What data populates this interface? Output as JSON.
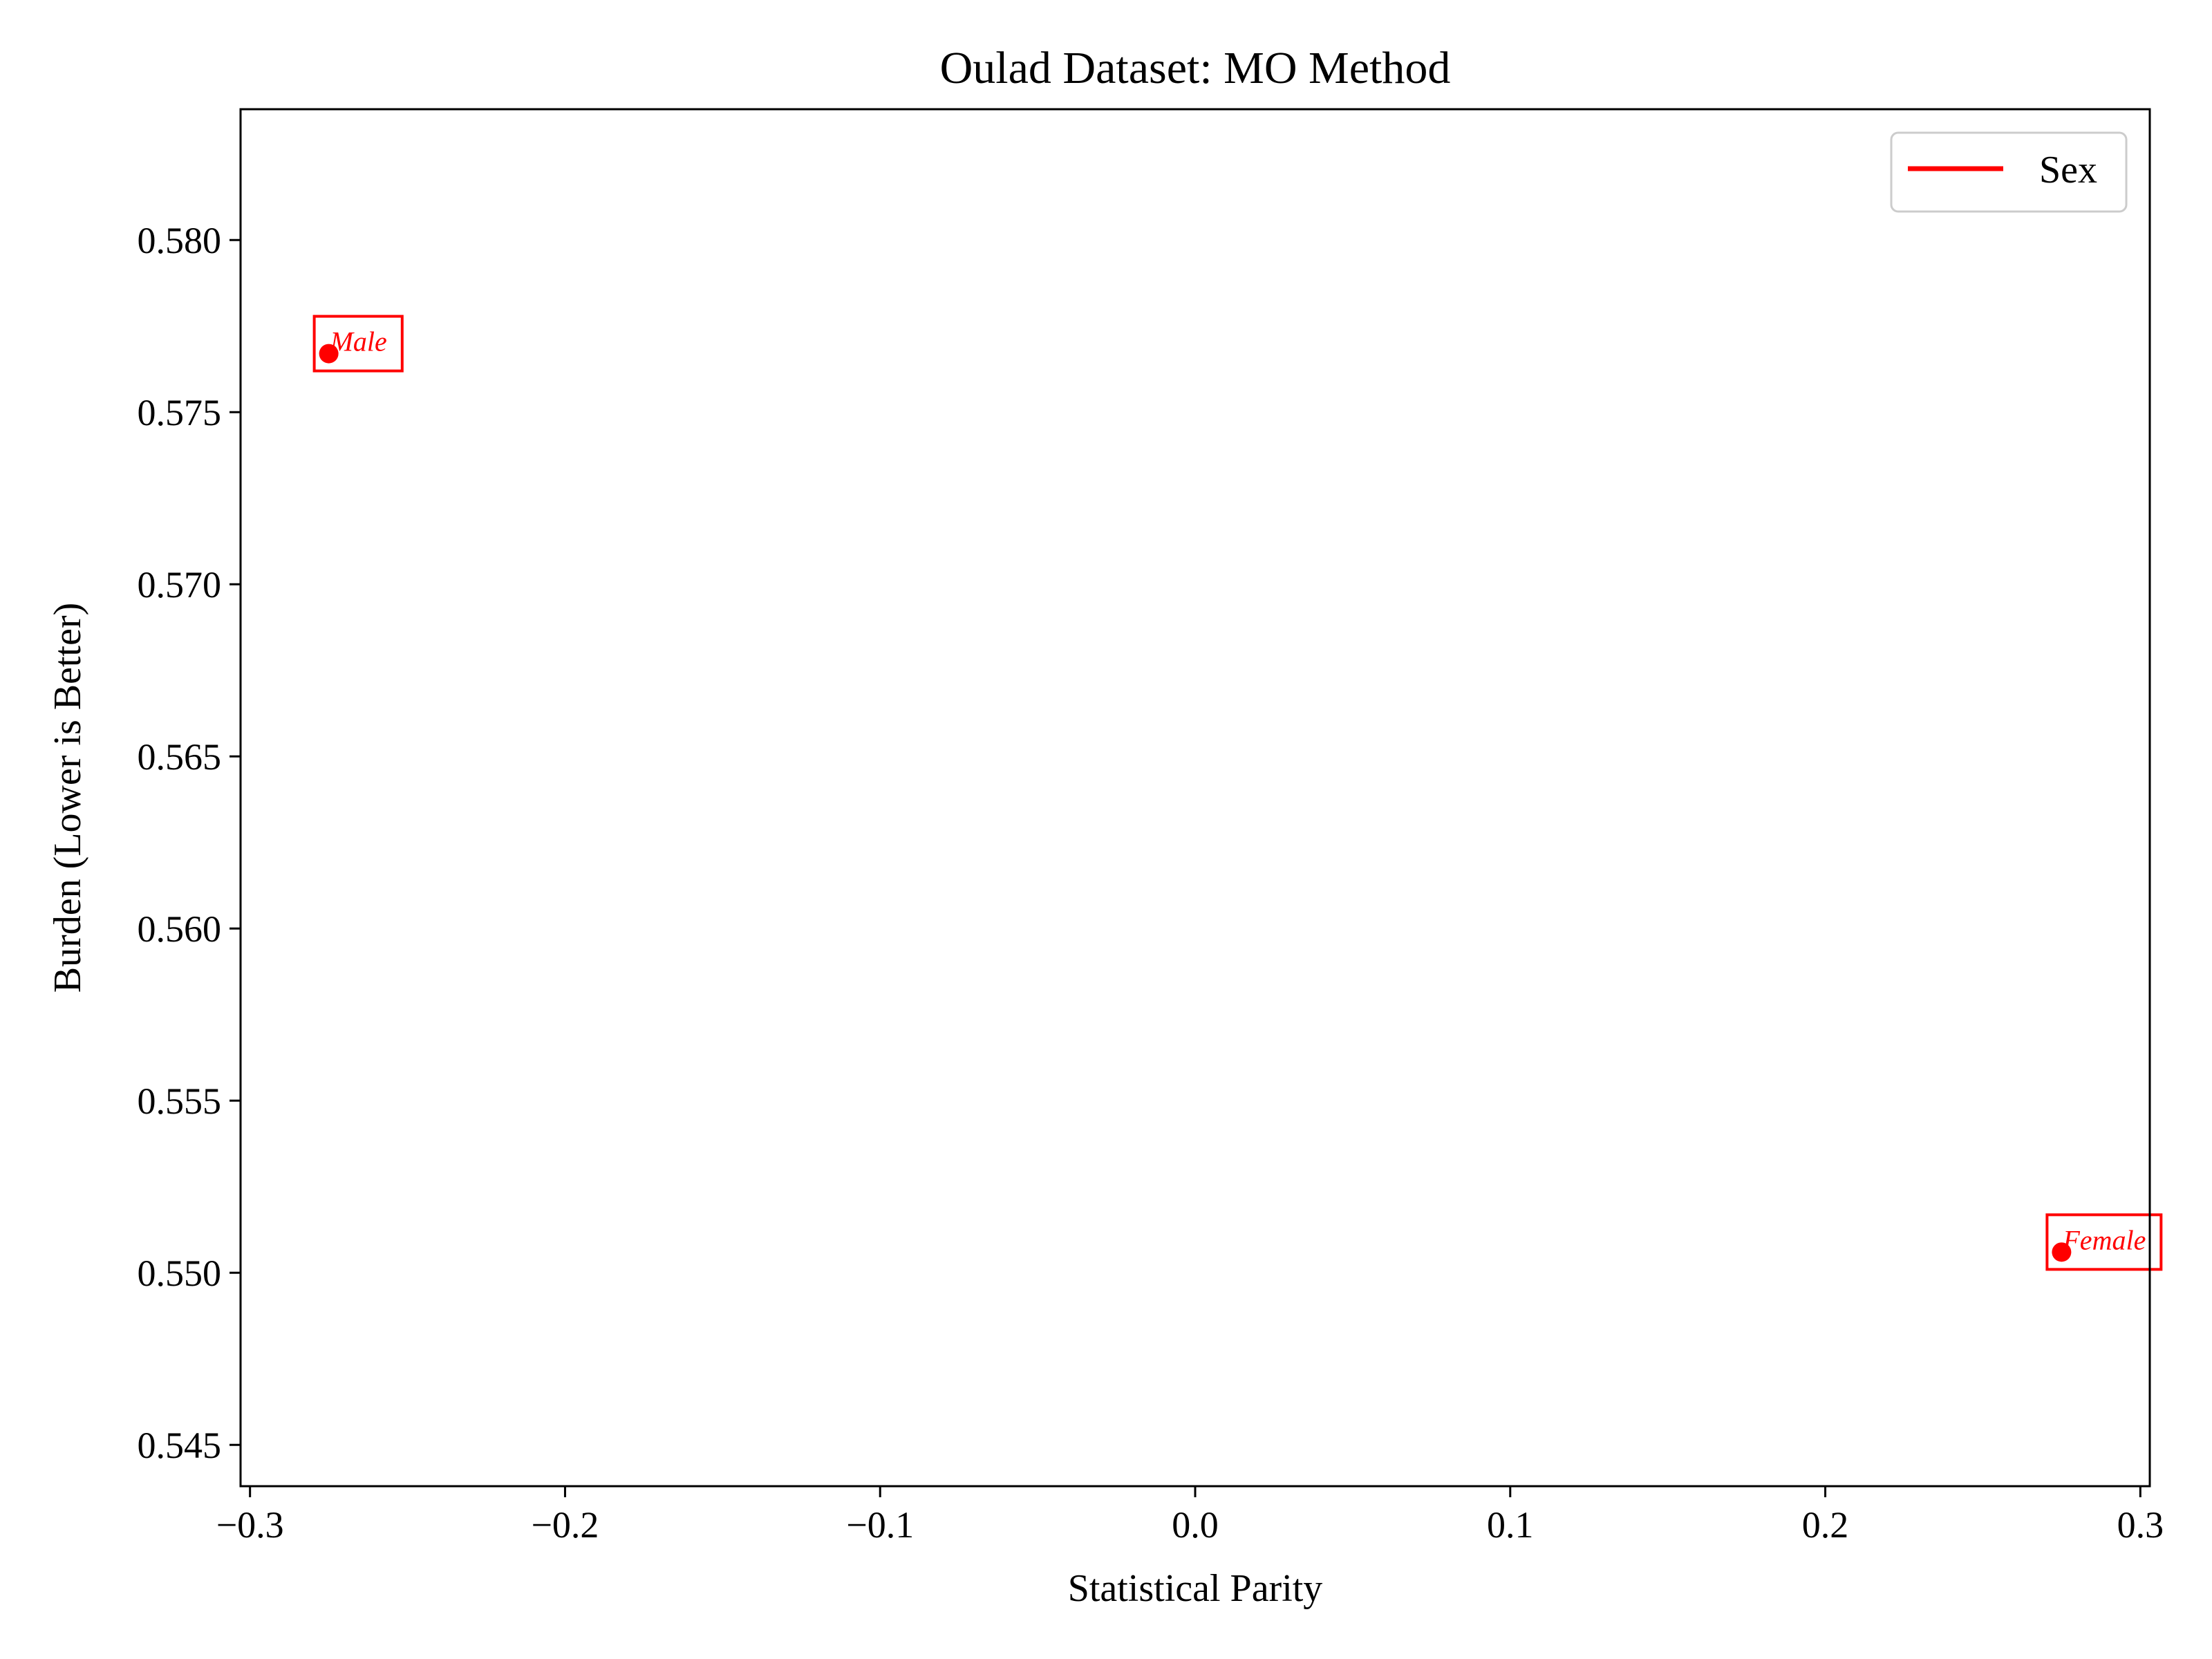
{
  "chart_data": {
    "type": "scatter",
    "title": "Oulad Dataset: MO Method",
    "xlabel": "Statistical Parity",
    "ylabel": "Burden (Lower is Better)",
    "xlim": [
      -0.303,
      0.303
    ],
    "ylim": [
      0.5438,
      0.5838
    ],
    "x_ticks": [
      -0.3,
      -0.2,
      -0.1,
      0.0,
      0.1,
      0.2,
      0.3
    ],
    "x_tick_labels": [
      "−0.3",
      "−0.2",
      "−0.1",
      "0.0",
      "0.1",
      "0.2",
      "0.3"
    ],
    "y_ticks": [
      0.545,
      0.55,
      0.555,
      0.56,
      0.565,
      0.57,
      0.575,
      0.58
    ],
    "y_tick_labels": [
      "0.545",
      "0.550",
      "0.555",
      "0.560",
      "0.565",
      "0.570",
      "0.575",
      "0.580"
    ],
    "grid": false,
    "legend": {
      "placement": "top-right",
      "entries": [
        {
          "label": "Sex",
          "color": "#ff0000",
          "marker": "line"
        }
      ]
    },
    "series": [
      {
        "name": "Sex",
        "color": "#ff0000",
        "points": [
          {
            "label": "Male",
            "x": -0.275,
            "y": 0.5767
          },
          {
            "label": "Female",
            "x": 0.275,
            "y": 0.5506
          }
        ]
      }
    ]
  }
}
